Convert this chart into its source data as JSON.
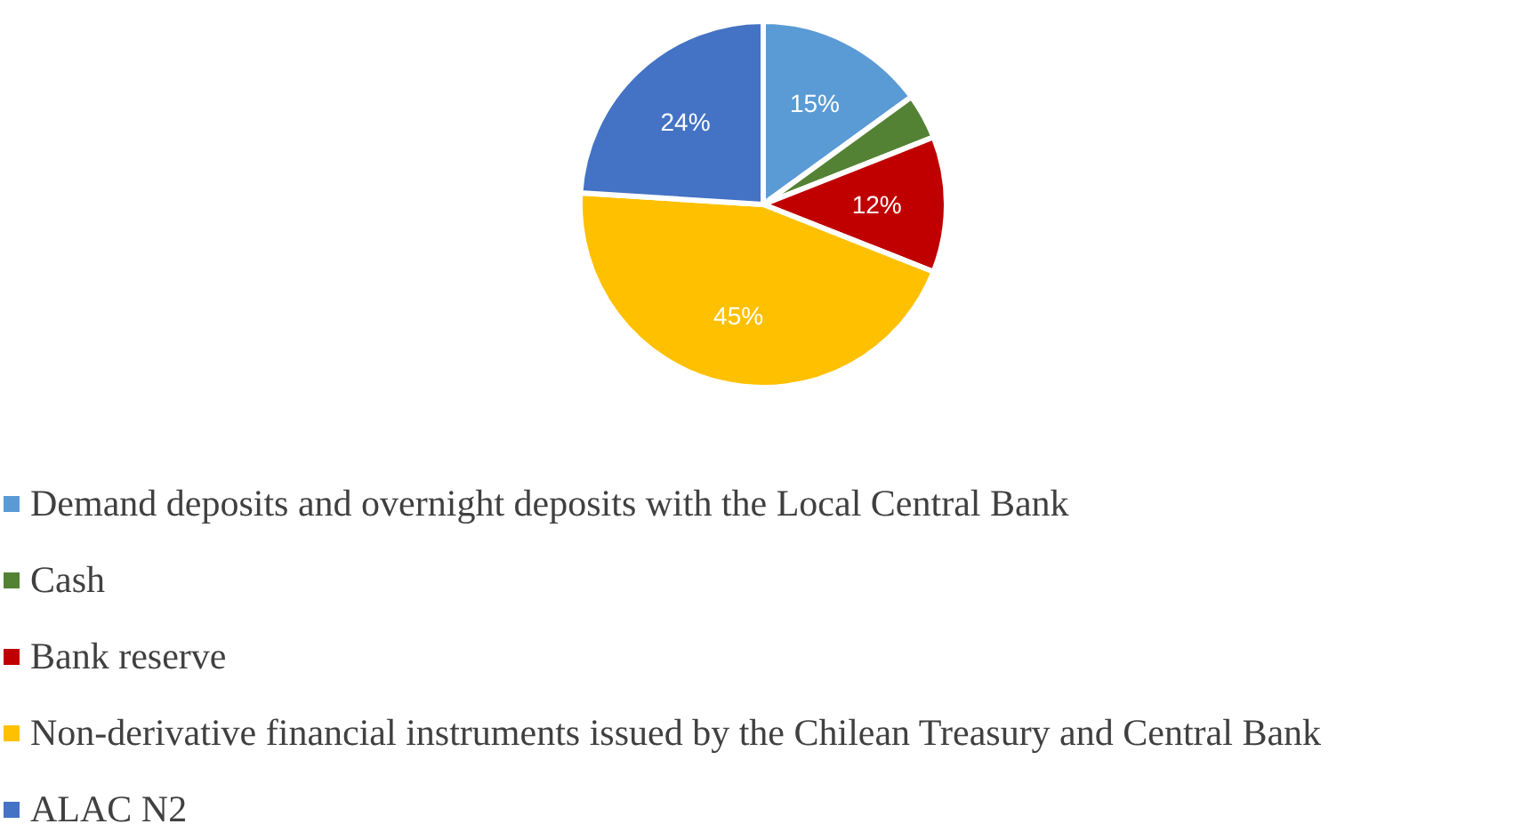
{
  "chart_data": {
    "type": "pie",
    "categories": [
      "Demand deposits and overnight deposits with the Local Central Bank",
      "Cash",
      "Bank reserve",
      "Non-derivative financial instruments issued by the Chilean Treasury and Central Bank",
      "ALAC N2"
    ],
    "values": [
      15,
      4,
      12,
      45,
      24
    ],
    "colors": [
      "#5b9bd5",
      "#548235",
      "#c00000",
      "#ffc000",
      "#4472c4"
    ],
    "value_labels": [
      "15%",
      null,
      "12%",
      "45%",
      "24%"
    ],
    "legend": "bottom"
  }
}
